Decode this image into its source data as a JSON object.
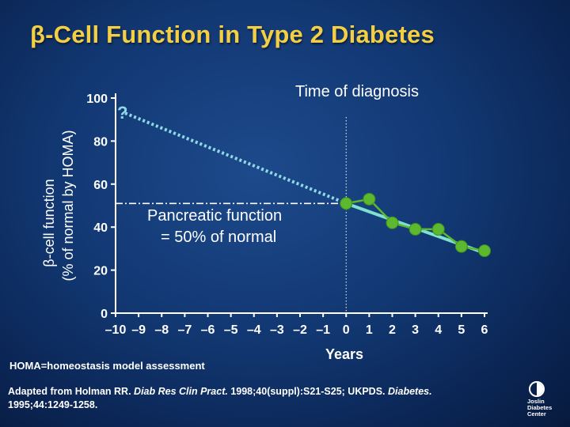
{
  "slide": {
    "title": "β-Cell Function in Type 2 Diabetes",
    "footnote": "HOMA=homeostasis model assessment",
    "source": {
      "part1": "Adapted from Holman RR. ",
      "journal1": "Diab Res Clin Pract.",
      "part2": " 1998;40(suppl):S21-S25; UKPDS. ",
      "journal2": "Diabetes.",
      "part3": " 1995;44:1249-1258."
    },
    "logo": {
      "line1": "Joslin",
      "line2": "Diabetes",
      "line3": "Center",
      "icon": "joslin-logo-icon"
    }
  },
  "colors": {
    "title": "#f2cf45",
    "points": "#5cb82e",
    "trend": "#7fe0d0",
    "extrapolation": "#8fd8e6",
    "axis": "#ffffff"
  },
  "chart_data": {
    "type": "line",
    "xlabel": "Years",
    "ylabel_line1": "β-cell function",
    "ylabel_line2": "(% of normal by HOMA)",
    "xlim": [
      -10,
      6
    ],
    "ylim": [
      0,
      100
    ],
    "x_ticks": [
      -10,
      -9,
      -8,
      -7,
      -6,
      -5,
      -4,
      -3,
      -2,
      -1,
      0,
      1,
      2,
      3,
      4,
      5,
      6
    ],
    "x_tick_labels": [
      "–10",
      "–9",
      "–8",
      "–7",
      "–6",
      "–5",
      "–4",
      "–3",
      "–2",
      "–1",
      "0",
      "1",
      "2",
      "3",
      "4",
      "5",
      "6"
    ],
    "y_ticks": [
      0,
      20,
      40,
      60,
      80,
      100
    ],
    "y_tick_labels": [
      "0",
      "20",
      "40",
      "60",
      "80",
      "100"
    ],
    "series": [
      {
        "kind": "observed",
        "x": [
          0,
          1,
          2,
          3,
          4,
          5,
          6
        ],
        "y": [
          51,
          53,
          42,
          39,
          39,
          31,
          29
        ]
      }
    ],
    "trend_line": {
      "x": [
        0,
        6
      ],
      "y": [
        51,
        28
      ]
    },
    "extrapolation": {
      "x": [
        -10,
        0
      ],
      "y": [
        93,
        51
      ]
    },
    "reference_line_y": 51,
    "diagnosis_x": 0,
    "annotations": {
      "question_mark": "?",
      "time_of_diagnosis": "Time of diagnosis",
      "pancreatic_line1": "Pancreatic function",
      "pancreatic_line2": "= 50% of normal"
    },
    "grid": false,
    "legend": "none"
  }
}
